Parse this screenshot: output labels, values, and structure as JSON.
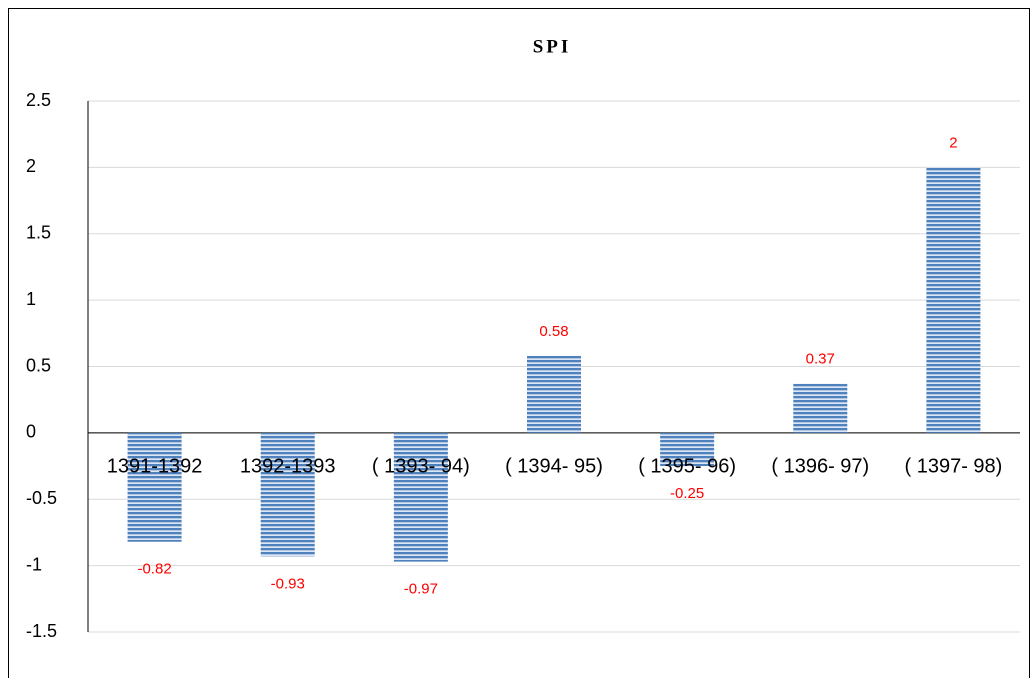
{
  "chart_data": {
    "type": "bar",
    "title": "SPI",
    "categories": [
      "1391-1392",
      "1392-1393",
      "( 1393- 94)",
      "( 1394- 95)",
      "( 1395- 96)",
      "( 1396- 97)",
      "( 1397- 98)"
    ],
    "values": [
      -0.82,
      -0.93,
      -0.97,
      0.58,
      -0.25,
      0.37,
      2
    ],
    "color": "#4f81bd",
    "label_color": "#ff0000",
    "ylim": [
      -1.5,
      2.5
    ],
    "yticks": [
      -1.5,
      -1,
      -0.5,
      0,
      0.5,
      1,
      1.5,
      2,
      2.5
    ],
    "grid": true
  }
}
